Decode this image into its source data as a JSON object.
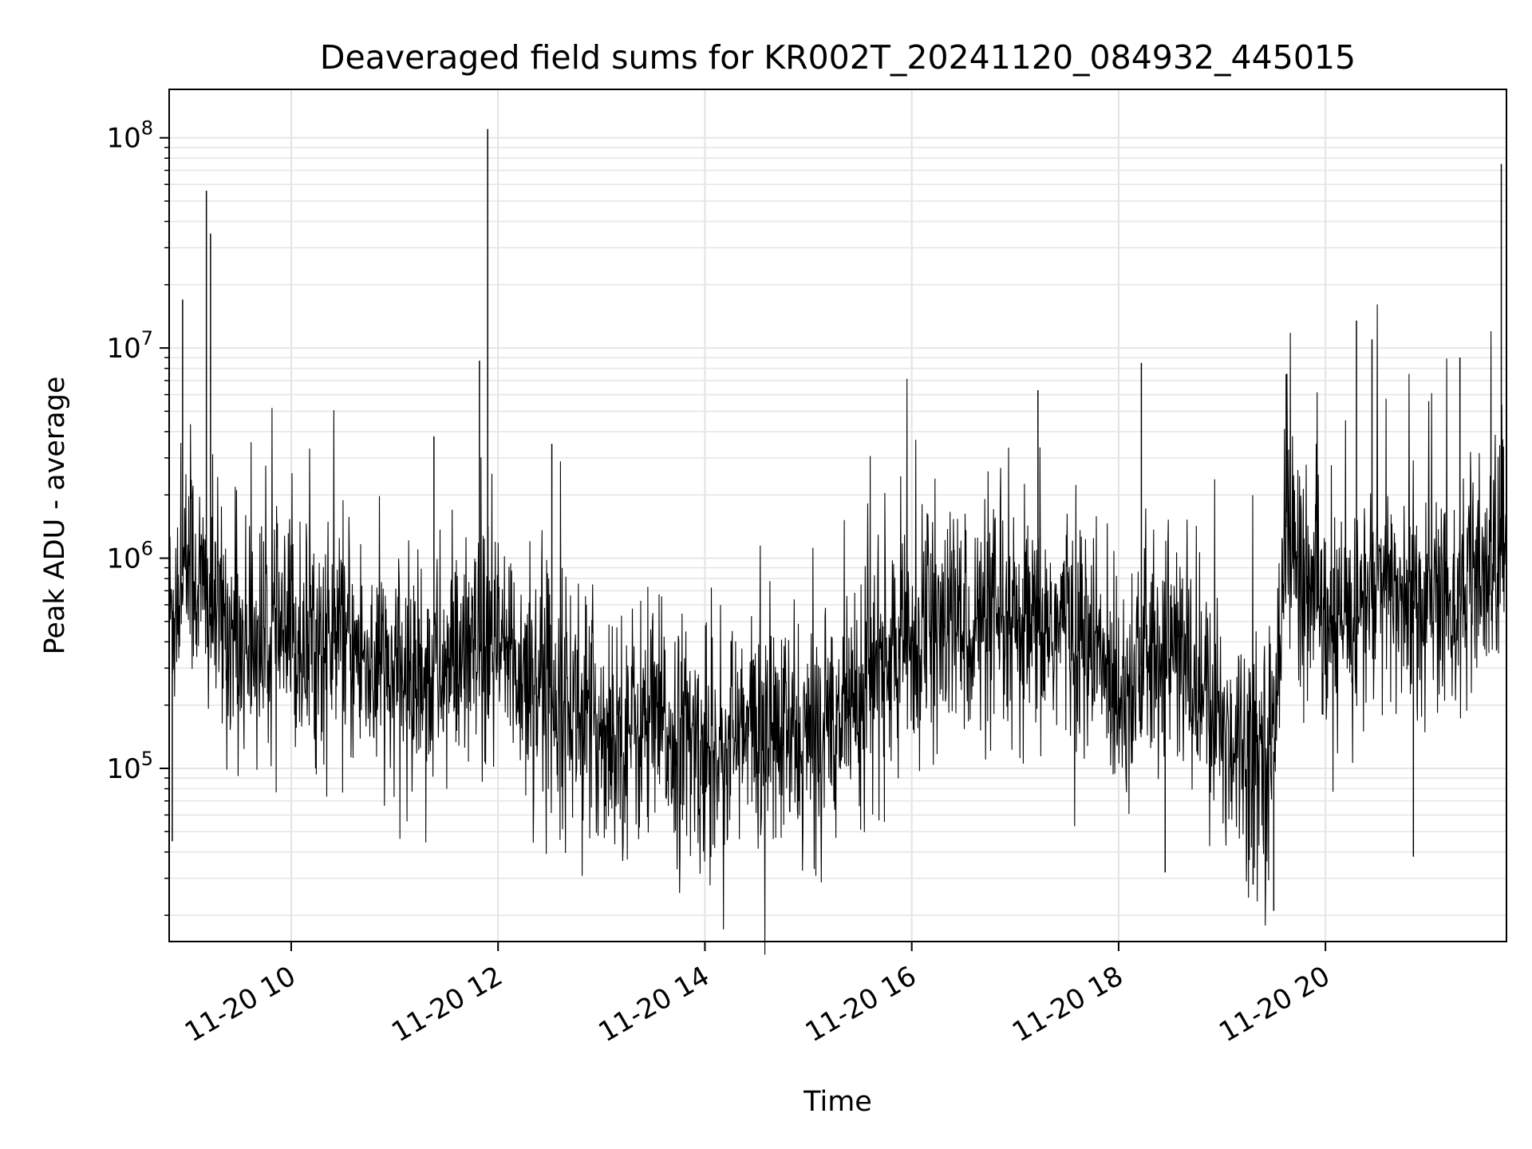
{
  "chart_data": {
    "type": "line",
    "title": "Deaveraged field sums for KR002T_20241120_084932_445015",
    "xlabel": "Time",
    "ylabel": "Peak ADU - average",
    "y_scale": "log",
    "grid": true,
    "xlim": [
      "2024-11-20 08:49",
      "2024-11-20 21:45"
    ],
    "ylim": [
      15000,
      170000000
    ],
    "x_ticks": [
      "11-20 10",
      "11-20 12",
      "11-20 14",
      "11-20 16",
      "11-20 18",
      "11-20 20"
    ],
    "x_tick_hours": [
      10,
      12,
      14,
      16,
      18,
      20
    ],
    "y_ticks": [
      {
        "base": "10",
        "exp": "5",
        "value": 100000
      },
      {
        "base": "10",
        "exp": "6",
        "value": 1000000
      },
      {
        "base": "10",
        "exp": "7",
        "value": 10000000
      },
      {
        "base": "10",
        "exp": "8",
        "value": 100000000
      }
    ],
    "series": [
      {
        "color": "#000000",
        "x_hours": [
          8.82,
          9.0,
          9.2,
          9.5,
          10.0,
          10.5,
          11.0,
          11.5,
          12.0,
          12.5,
          13.0,
          13.5,
          14.0,
          14.5,
          15.0,
          15.5,
          16.0,
          16.5,
          17.0,
          17.5,
          18.0,
          18.5,
          19.0,
          19.5,
          19.6,
          20.0,
          20.5,
          21.0,
          21.5,
          21.75
        ],
        "y_typical": [
          500000,
          1000000,
          600000,
          400000,
          400000,
          400000,
          250000,
          300000,
          350000,
          250000,
          150000,
          160000,
          120000,
          150000,
          130000,
          250000,
          400000,
          500000,
          400000,
          500000,
          250000,
          400000,
          150000,
          120000,
          1500000,
          400000,
          700000,
          600000,
          700000,
          1200000
        ],
        "peaks": [
          {
            "x_hour": 8.95,
            "y": 17000000
          },
          {
            "x_hour": 9.18,
            "y": 56000000
          },
          {
            "x_hour": 9.22,
            "y": 35000000
          },
          {
            "x_hour": 11.38,
            "y": 3800000
          },
          {
            "x_hour": 11.82,
            "y": 8700000
          },
          {
            "x_hour": 11.9,
            "y": 110000000
          },
          {
            "x_hour": 12.52,
            "y": 3500000
          },
          {
            "x_hour": 17.22,
            "y": 6300000
          },
          {
            "x_hour": 18.22,
            "y": 8500000
          },
          {
            "x_hour": 19.62,
            "y": 7500000
          },
          {
            "x_hour": 20.3,
            "y": 13500000
          },
          {
            "x_hour": 20.45,
            "y": 11000000
          },
          {
            "x_hour": 21.3,
            "y": 9000000
          },
          {
            "x_hour": 21.7,
            "y": 75000000
          }
        ],
        "troughs": [
          {
            "x_hour": 8.85,
            "y": 45000
          },
          {
            "x_hour": 18.45,
            "y": 32000
          },
          {
            "x_hour": 19.3,
            "y": 28000
          },
          {
            "x_hour": 19.5,
            "y": 21000
          },
          {
            "x_hour": 20.85,
            "y": 38000
          }
        ]
      }
    ]
  }
}
